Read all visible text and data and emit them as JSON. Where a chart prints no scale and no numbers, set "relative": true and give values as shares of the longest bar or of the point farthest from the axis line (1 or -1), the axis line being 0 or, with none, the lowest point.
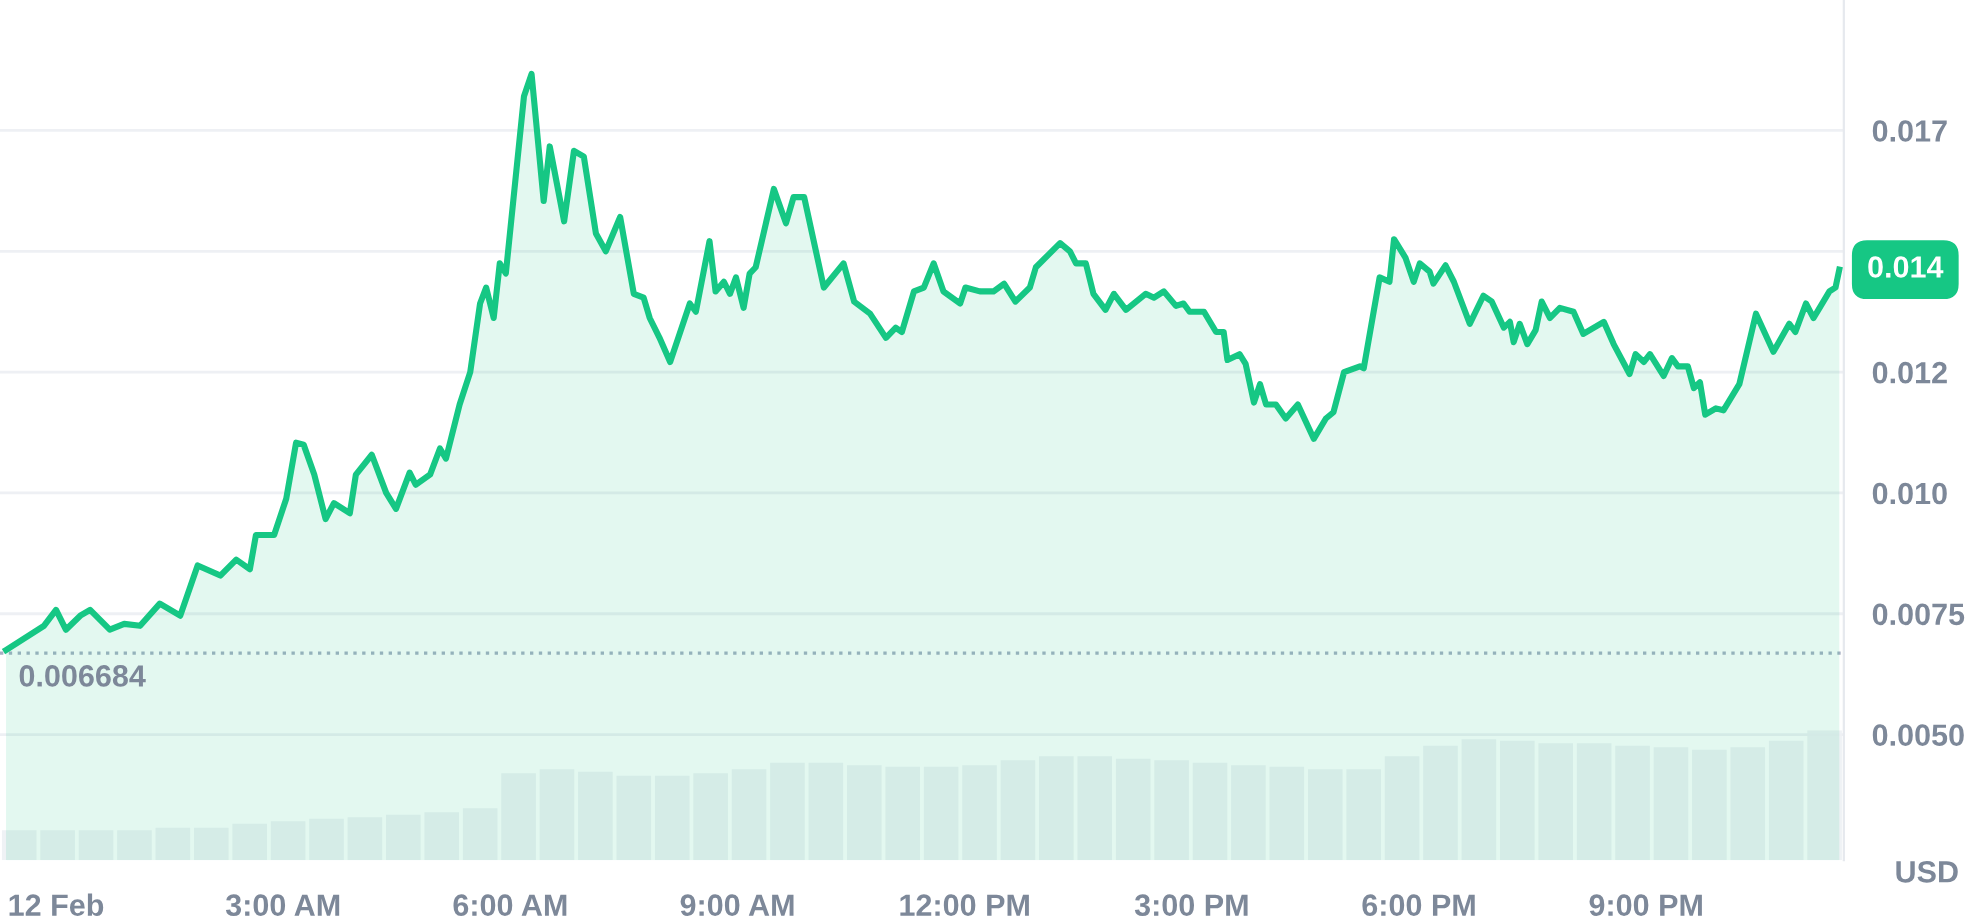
{
  "chart_data": [
    {
      "type": "area",
      "ylabel": "USD",
      "color": "#16c784",
      "x": [
        -0.66,
        -0.16,
        0.0,
        0.13,
        0.32,
        0.45,
        0.71,
        0.9,
        1.11,
        1.37,
        1.64,
        1.87,
        2.17,
        2.38,
        2.56,
        2.64,
        2.88,
        3.04,
        3.17,
        3.27,
        3.41,
        3.56,
        3.67,
        3.88,
        3.96,
        4.17,
        4.36,
        4.49,
        4.67,
        4.75,
        4.94,
        5.07,
        5.15,
        5.33,
        5.47,
        5.6,
        5.68,
        5.78,
        5.86,
        5.94,
        6.18,
        6.28,
        6.44,
        6.52,
        6.71,
        6.84,
        6.97,
        7.13,
        7.26,
        7.45,
        7.63,
        7.76,
        7.84,
        7.97,
        8.11,
        8.37,
        8.45,
        8.63,
        8.71,
        8.82,
        8.9,
        8.98,
        9.08,
        9.16,
        9.24,
        9.48,
        9.64,
        9.74,
        9.88,
        10.14,
        10.4,
        10.54,
        10.75,
        10.96,
        11.09,
        11.17,
        11.33,
        11.46,
        11.59,
        11.72,
        11.94,
        12.01,
        12.2,
        12.38,
        12.52,
        12.67,
        12.86,
        12.94,
        13.26,
        13.39,
        13.47,
        13.6,
        13.7,
        13.86,
        13.97,
        14.13,
        14.39,
        14.5,
        14.63,
        14.79,
        14.89,
        14.97,
        15.16,
        15.32,
        15.42,
        15.47,
        15.63,
        15.71,
        15.82,
        15.9,
        15.98,
        16.11,
        16.24,
        16.4,
        16.61,
        16.77,
        16.87,
        17.01,
        17.22,
        17.27,
        17.48,
        17.61,
        17.67,
        17.82,
        17.93,
        18.01,
        18.14,
        18.19,
        18.35,
        18.46,
        18.67,
        18.85,
        18.96,
        19.12,
        19.2,
        19.25,
        19.33,
        19.43,
        19.54,
        19.62,
        19.73,
        19.86,
        20.04,
        20.17,
        20.44,
        20.57,
        20.78,
        20.86,
        20.97,
        21.05,
        21.23,
        21.34,
        21.42,
        21.55,
        21.63,
        21.71,
        21.78,
        21.92,
        22.02,
        22.23,
        22.45,
        22.68,
        22.89,
        22.97,
        23.11,
        23.21,
        23.29,
        23.42,
        23.5,
        23.55
      ],
      "values": [
        0.00675,
        0.00725,
        0.00758,
        0.00717,
        0.00746,
        0.00758,
        0.00717,
        0.00729,
        0.00725,
        0.00771,
        0.00746,
        0.0085,
        0.00829,
        0.00862,
        0.00842,
        0.00913,
        0.00913,
        0.00988,
        0.01104,
        0.011,
        0.01038,
        0.00946,
        0.00979,
        0.00958,
        0.01038,
        0.01079,
        0.01,
        0.00967,
        0.01042,
        0.01017,
        0.01038,
        0.01092,
        0.01071,
        0.01183,
        0.0125,
        0.01392,
        0.01425,
        0.01362,
        0.01475,
        0.01454,
        0.01821,
        0.01867,
        0.01604,
        0.01717,
        0.01562,
        0.01708,
        0.01696,
        0.01537,
        0.015,
        0.01571,
        0.01412,
        0.01404,
        0.01362,
        0.01321,
        0.01271,
        0.01392,
        0.01375,
        0.01521,
        0.01417,
        0.01437,
        0.01412,
        0.01446,
        0.01383,
        0.01454,
        0.01467,
        0.01629,
        0.01558,
        0.01612,
        0.01612,
        0.01425,
        0.01475,
        0.01396,
        0.01371,
        0.01321,
        0.01342,
        0.01333,
        0.01417,
        0.01425,
        0.01475,
        0.01417,
        0.01392,
        0.01425,
        0.01417,
        0.01417,
        0.01433,
        0.01396,
        0.01425,
        0.01467,
        0.01517,
        0.015,
        0.01475,
        0.01475,
        0.01412,
        0.01379,
        0.01412,
        0.01379,
        0.01412,
        0.01404,
        0.01417,
        0.01387,
        0.01392,
        0.01375,
        0.01375,
        0.01333,
        0.01333,
        0.01275,
        0.01287,
        0.01267,
        0.01187,
        0.01225,
        0.01183,
        0.01183,
        0.01154,
        0.01183,
        0.01112,
        0.01154,
        0.01167,
        0.0125,
        0.01262,
        0.01258,
        0.01446,
        0.01437,
        0.01525,
        0.01487,
        0.01437,
        0.01475,
        0.01458,
        0.01433,
        0.01471,
        0.01437,
        0.0135,
        0.01408,
        0.01396,
        0.01342,
        0.01354,
        0.01312,
        0.0135,
        0.01308,
        0.01337,
        0.01396,
        0.01362,
        0.01383,
        0.01375,
        0.01329,
        0.01354,
        0.01308,
        0.01246,
        0.01287,
        0.01271,
        0.01287,
        0.01242,
        0.01279,
        0.01262,
        0.01262,
        0.01217,
        0.01229,
        0.01162,
        0.01175,
        0.01171,
        0.01225,
        0.01371,
        0.01292,
        0.0135,
        0.01333,
        0.01392,
        0.01362,
        0.01383,
        0.01417,
        0.01425,
        0.01462
      ],
      "xlim": [
        -0.74,
        23.61
      ],
      "ylim": [
        0.0024,
        0.0202
      ],
      "xticks": [
        {
          "value": 0,
          "label": "12 Feb"
        },
        {
          "value": 3,
          "label": "3:00 AM"
        },
        {
          "value": 6,
          "label": "6:00 AM"
        },
        {
          "value": 9,
          "label": "9:00 AM"
        },
        {
          "value": 12,
          "label": "12:00 PM"
        },
        {
          "value": 15,
          "label": "3:00 PM"
        },
        {
          "value": 18,
          "label": "6:00 PM"
        },
        {
          "value": 21,
          "label": "9:00 PM"
        }
      ],
      "yticks": [
        {
          "value": 0.005,
          "label": "0.0050"
        },
        0.0075,
        {
          "value": 0.01,
          "label": "0.010"
        },
        {
          "value": 0.0125,
          "label": "0.012"
        },
        {
          "value": 0.015,
          "label": null
        },
        {
          "value": 0.0175,
          "label": "0.017"
        }
      ],
      "grid": "y",
      "line_style": "solid",
      "ref_lines": [
        {
          "axis": "y",
          "value": 0.006684,
          "label": "0.006684",
          "color": "#a6b0c3",
          "line_style": "dotted"
        }
      ],
      "annotations": [
        {
          "text": "0.014",
          "x": 23.55,
          "y": 0.01462
        }
      ]
    },
    {
      "type": "bar",
      "relative": true,
      "color": "#eff2f5",
      "tick_labels": false,
      "categories": [
        null,
        null,
        null,
        null,
        null,
        null,
        null,
        null,
        null,
        null,
        null,
        null,
        null,
        null,
        null,
        null,
        null,
        null,
        null,
        null,
        null,
        null,
        null,
        null,
        null,
        null,
        null,
        null,
        null,
        null,
        null,
        null,
        null,
        null,
        null,
        null,
        null,
        null,
        null,
        null,
        null,
        null,
        null,
        null,
        null,
        null,
        null,
        null
      ],
      "values": [
        0.23,
        0.23,
        0.23,
        0.23,
        0.25,
        0.25,
        0.28,
        0.3,
        0.32,
        0.33,
        0.35,
        0.37,
        0.4,
        0.67,
        0.7,
        0.68,
        0.65,
        0.65,
        0.67,
        0.7,
        0.75,
        0.75,
        0.73,
        0.72,
        0.72,
        0.73,
        0.77,
        0.8,
        0.8,
        0.78,
        0.77,
        0.75,
        0.73,
        0.72,
        0.7,
        0.7,
        0.8,
        0.88,
        0.93,
        0.92,
        0.9,
        0.9,
        0.88,
        0.87,
        0.85,
        0.87,
        0.92,
        1
      ]
    }
  ]
}
